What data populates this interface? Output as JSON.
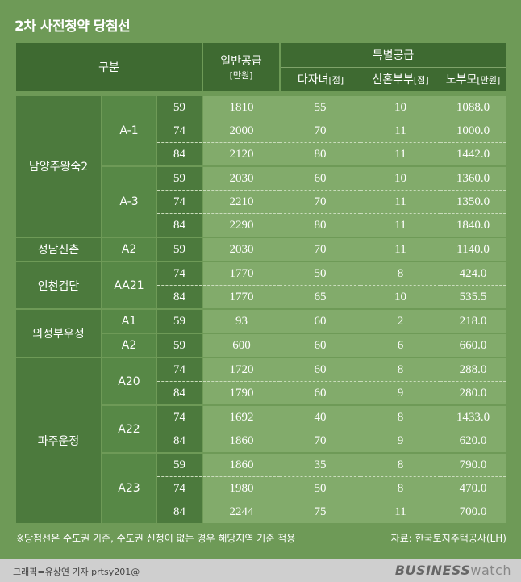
{
  "title": "2차 사전청약 당첨선",
  "header": {
    "category": "구분",
    "general_title": "일반공급",
    "general_unit": "[만원]",
    "special_title": "특별공급",
    "multi_child_title": "다자녀",
    "multi_child_unit": "[점]",
    "newlywed_title": "신혼부부",
    "newlywed_unit": "[점]",
    "elderly_title": "노부모",
    "elderly_unit": "[만원]"
  },
  "places": [
    "남양주왕숙2",
    "성남신촌",
    "인천검단",
    "의정부우정",
    "파주운정"
  ],
  "blocks": [
    "A-1",
    "A-3",
    "A2",
    "AA21",
    "A1",
    "A2",
    "A20",
    "A22",
    "A23"
  ],
  "rows": [
    {
      "size": "59",
      "general": "1810",
      "multi": "55",
      "newlywed": "10",
      "elderly": "1088.0"
    },
    {
      "size": "74",
      "general": "2000",
      "multi": "70",
      "newlywed": "11",
      "elderly": "1000.0"
    },
    {
      "size": "84",
      "general": "2120",
      "multi": "80",
      "newlywed": "11",
      "elderly": "1442.0"
    },
    {
      "size": "59",
      "general": "2030",
      "multi": "60",
      "newlywed": "10",
      "elderly": "1360.0"
    },
    {
      "size": "74",
      "general": "2210",
      "multi": "70",
      "newlywed": "11",
      "elderly": "1350.0"
    },
    {
      "size": "84",
      "general": "2290",
      "multi": "80",
      "newlywed": "11",
      "elderly": "1840.0"
    },
    {
      "size": "59",
      "general": "2030",
      "multi": "70",
      "newlywed": "11",
      "elderly": "1140.0"
    },
    {
      "size": "74",
      "general": "1770",
      "multi": "50",
      "newlywed": "8",
      "elderly": "424.0"
    },
    {
      "size": "84",
      "general": "1770",
      "multi": "65",
      "newlywed": "10",
      "elderly": "535.5"
    },
    {
      "size": "59",
      "general": "93",
      "multi": "60",
      "newlywed": "2",
      "elderly": "218.0"
    },
    {
      "size": "59",
      "general": "600",
      "multi": "60",
      "newlywed": "6",
      "elderly": "660.0"
    },
    {
      "size": "74",
      "general": "1720",
      "multi": "60",
      "newlywed": "8",
      "elderly": "288.0"
    },
    {
      "size": "84",
      "general": "1790",
      "multi": "60",
      "newlywed": "9",
      "elderly": "280.0"
    },
    {
      "size": "74",
      "general": "1692",
      "multi": "40",
      "newlywed": "8",
      "elderly": "1433.0"
    },
    {
      "size": "84",
      "general": "1860",
      "multi": "70",
      "newlywed": "9",
      "elderly": "620.0"
    },
    {
      "size": "59",
      "general": "1860",
      "multi": "35",
      "newlywed": "8",
      "elderly": "790.0"
    },
    {
      "size": "74",
      "general": "1980",
      "multi": "50",
      "newlywed": "8",
      "elderly": "470.0"
    },
    {
      "size": "84",
      "general": "2244",
      "multi": "75",
      "newlywed": "11",
      "elderly": "700.0"
    }
  ],
  "note": "※당첨선은 수도권 기준, 수도권 신청이 없는 경우 해당지역 기준 적용",
  "source": "자료: 한국토지주택공사(LH)",
  "credit": "그래픽=유상연 기자 prtsy201@",
  "brand_main": "BUSINESS",
  "brand_sub": "watch"
}
